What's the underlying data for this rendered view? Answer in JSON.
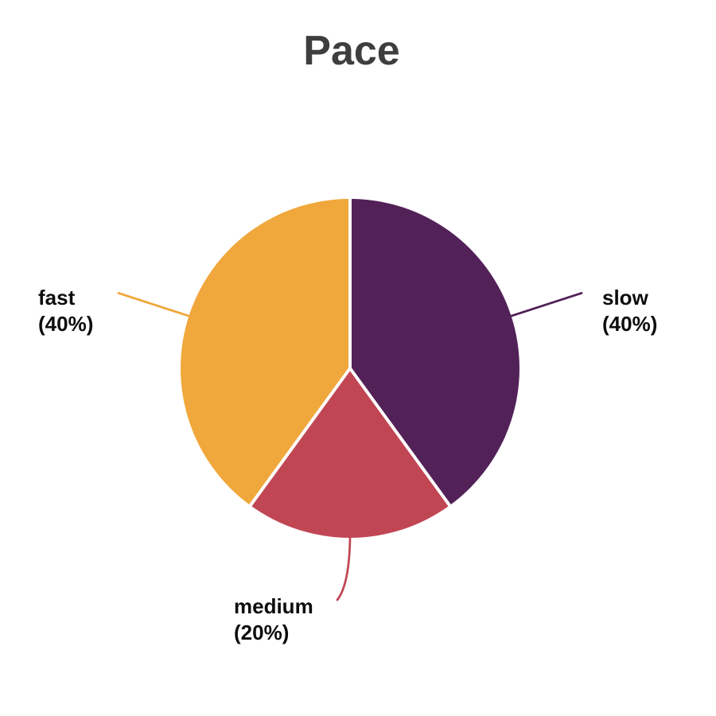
{
  "page": {
    "background_color": "#ffffff"
  },
  "chart_data": {
    "type": "pie",
    "title": "Pace",
    "title_color": "#3e3e3e",
    "label_text_color": "#0d0d0d",
    "separator_color": "#ffffff",
    "start_angle_deg": 0,
    "direction": "clockwise",
    "legend": "none",
    "slices": [
      {
        "label": "slow",
        "value": 40,
        "pct_label": "(40%)",
        "color": "#522158"
      },
      {
        "label": "medium",
        "value": 20,
        "pct_label": "(20%)",
        "color": "#C14654"
      },
      {
        "label": "fast",
        "value": 40,
        "pct_label": "(40%)",
        "color": "#F0A73B"
      }
    ]
  }
}
